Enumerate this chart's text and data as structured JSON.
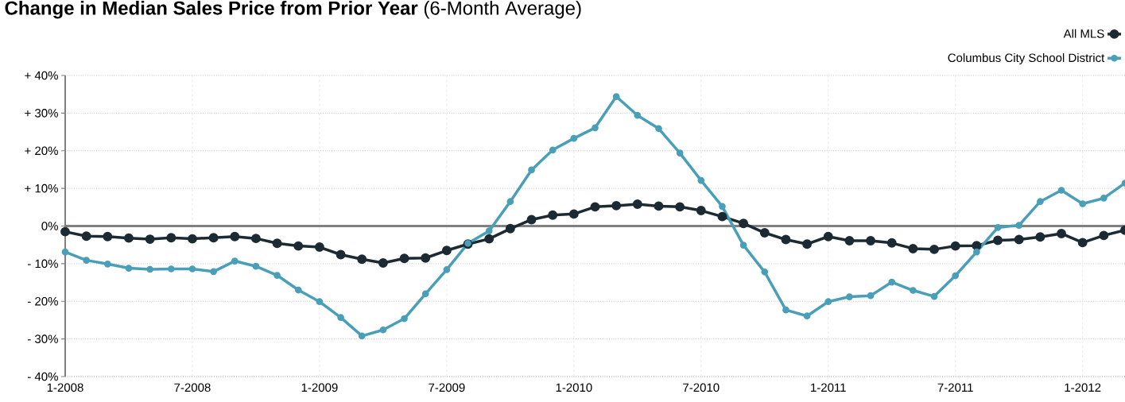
{
  "chart_data": {
    "type": "line",
    "title": "**Change in Median Sales Price from Prior Year** (6-Month Average)",
    "x": [
      "2008-01",
      "2008-02",
      "2008-03",
      "2008-04",
      "2008-05",
      "2008-06",
      "2008-07",
      "2008-08",
      "2008-09",
      "2008-10",
      "2008-11",
      "2008-12",
      "2009-01",
      "2009-02",
      "2009-03",
      "2009-04",
      "2009-05",
      "2009-06",
      "2009-07",
      "2009-08",
      "2009-09",
      "2009-10",
      "2009-11",
      "2009-12",
      "2010-01",
      "2010-02",
      "2010-03",
      "2010-04",
      "2010-05",
      "2010-06",
      "2010-07",
      "2010-08",
      "2010-09",
      "2010-10",
      "2010-11",
      "2010-12",
      "2011-01",
      "2011-02",
      "2011-03",
      "2011-04",
      "2011-05",
      "2011-06",
      "2011-07",
      "2011-08",
      "2011-09",
      "2011-10",
      "2011-11",
      "2011-12",
      "2012-01",
      "2012-02",
      "2012-03"
    ],
    "series": [
      {
        "name": "All MLS",
        "color": "#1b2a33",
        "values": [
          -1.5,
          -2.7,
          -2.8,
          -3.2,
          -3.5,
          -3.1,
          -3.4,
          -3.1,
          -2.8,
          -3.3,
          -4.6,
          -5.3,
          -5.6,
          -7.6,
          -8.8,
          -9.8,
          -8.6,
          -8.5,
          -6.5,
          -4.8,
          -3.4,
          -0.7,
          1.7,
          2.9,
          3.2,
          5.1,
          5.4,
          5.8,
          5.3,
          5.1,
          4.1,
          2.5,
          0.7,
          -1.8,
          -3.6,
          -4.8,
          -2.8,
          -3.9,
          -3.9,
          -4.5,
          -6.0,
          -6.2,
          -5.3,
          -5.2,
          -3.8,
          -3.6,
          -2.9,
          -2.0,
          -4.4,
          -2.5,
          -1.1
        ]
      },
      {
        "name": "Columbus City School District",
        "color": "#4a9fb8",
        "values": [
          -6.9,
          -9.1,
          -10.1,
          -11.2,
          -11.5,
          -11.4,
          -11.4,
          -12.1,
          -9.3,
          -10.7,
          -13.1,
          -17.0,
          -20.1,
          -24.3,
          -29.2,
          -27.6,
          -24.6,
          -18.0,
          -11.6,
          -4.6,
          -1.3,
          6.5,
          14.9,
          20.2,
          23.3,
          26.1,
          34.4,
          29.4,
          25.9,
          19.4,
          12.1,
          5.2,
          -5.1,
          -12.2,
          -22.3,
          -23.9,
          -20.1,
          -18.8,
          -18.5,
          -14.9,
          -17.1,
          -18.7,
          -13.2,
          -6.9,
          -0.4,
          0.2,
          6.5,
          9.5,
          5.9,
          7.4,
          11.4
        ]
      }
    ],
    "xlim": [
      "2008-01",
      "2012-03"
    ],
    "xticks": [
      {
        "value": "2008-01",
        "label": "1-2008"
      },
      {
        "value": "2008-07",
        "label": "7-2008"
      },
      {
        "value": "2009-01",
        "label": "1-2009"
      },
      {
        "value": "2009-07",
        "label": "7-2009"
      },
      {
        "value": "2010-01",
        "label": "1-2010"
      },
      {
        "value": "2010-07",
        "label": "7-2010"
      },
      {
        "value": "2011-01",
        "label": "1-2011"
      },
      {
        "value": "2011-07",
        "label": "7-2011"
      },
      {
        "value": "2012-01",
        "label": "1-2012"
      }
    ],
    "ylim": [
      -40,
      40
    ],
    "yticks": [
      {
        "value": -40,
        "label": "- 40%"
      },
      {
        "value": -30,
        "label": "- 30%"
      },
      {
        "value": -20,
        "label": "- 20%"
      },
      {
        "value": -10,
        "label": "- 10%"
      },
      {
        "value": 0,
        "label": "0%"
      },
      {
        "value": 10,
        "label": "+ 10%"
      },
      {
        "value": 20,
        "label": "+ 20%"
      },
      {
        "value": 30,
        "label": "+ 30%"
      },
      {
        "value": 40,
        "label": "+ 40%"
      }
    ],
    "ref_lines": [
      {
        "axis": "y",
        "value": 0,
        "color": "#808080"
      }
    ],
    "grid": true,
    "legend": "top right",
    "marker": "circle",
    "line_style": "solid"
  }
}
